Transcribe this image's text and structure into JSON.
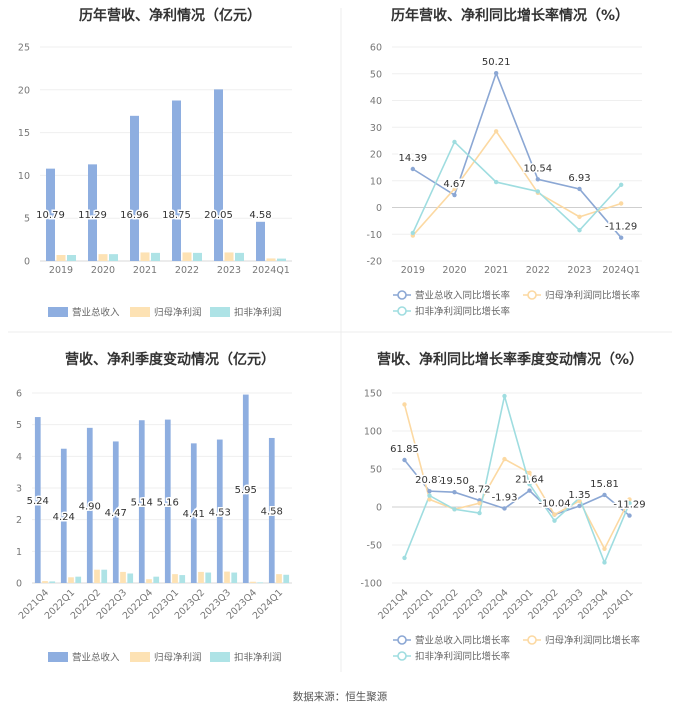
{
  "footer": {
    "source": "数据来源：恒生聚源"
  },
  "colors": {
    "revenue": "#8eaee0",
    "net_profit": "#fde2b4",
    "deducted_profit": "#aee3e6",
    "rev_line": "#8ba7d4",
    "np_line": "#fcd9a2",
    "dp_line": "#9fdde0"
  },
  "chart_data": [
    {
      "type": "bar",
      "title": "历年营收、净利情况（亿元）",
      "categories": [
        "2019",
        "2020",
        "2021",
        "2022",
        "2023",
        "2024Q1"
      ],
      "ylim": [
        0,
        25
      ],
      "yticks": [
        0,
        5,
        10,
        15,
        20,
        25
      ],
      "series": [
        {
          "name": "营业总收入",
          "values": [
            10.79,
            11.29,
            16.96,
            18.75,
            20.05,
            4.58
          ]
        },
        {
          "name": "归母净利润",
          "values": [
            0.7,
            0.8,
            1.0,
            1.0,
            1.0,
            0.3
          ]
        },
        {
          "name": "扣非净利润",
          "values": [
            0.7,
            0.8,
            0.95,
            0.95,
            0.95,
            0.28
          ]
        }
      ],
      "value_labels": [
        "10.79",
        "11.29",
        "16.96",
        "18.75",
        "20.05",
        "4.58"
      ],
      "legend": "bottom"
    },
    {
      "type": "line",
      "title": "历年营收、净利同比增长率情况（%）",
      "categories": [
        "2019",
        "2020",
        "2021",
        "2022",
        "2023",
        "2024Q1"
      ],
      "ylim": [
        -20,
        60
      ],
      "yticks": [
        -20,
        -10,
        0,
        10,
        20,
        30,
        40,
        50,
        60
      ],
      "series": [
        {
          "name": "营业总收入同比增长率",
          "values": [
            14.39,
            4.67,
            50.21,
            10.54,
            6.93,
            -11.29
          ]
        },
        {
          "name": "归母净利润同比增长率",
          "values": [
            -10.5,
            7.0,
            28.5,
            5.5,
            -3.5,
            1.5
          ]
        },
        {
          "name": "扣非净利润同比增长率",
          "values": [
            -9.5,
            24.5,
            9.5,
            6.0,
            -8.5,
            8.5
          ]
        }
      ],
      "value_labels": [
        "14.39",
        "4.67",
        "50.21",
        "10.54",
        "6.93",
        "-11.29"
      ],
      "legend": "bottom"
    },
    {
      "type": "bar",
      "title": "营收、净利季度变动情况（亿元）",
      "categories": [
        "2021Q4",
        "2022Q1",
        "2022Q2",
        "2022Q3",
        "2022Q4",
        "2023Q1",
        "2023Q2",
        "2023Q3",
        "2023Q4",
        "2024Q1"
      ],
      "ylim": [
        0,
        6
      ],
      "yticks": [
        0,
        1,
        2,
        3,
        4,
        5,
        6
      ],
      "series": [
        {
          "name": "营业总收入",
          "values": [
            5.24,
            4.24,
            4.9,
            4.47,
            5.14,
            5.16,
            4.41,
            4.53,
            5.95,
            4.58
          ]
        },
        {
          "name": "归母净利润",
          "values": [
            0.06,
            0.18,
            0.42,
            0.35,
            0.12,
            0.28,
            0.35,
            0.36,
            0.04,
            0.28
          ]
        },
        {
          "name": "扣非净利润",
          "values": [
            0.05,
            0.2,
            0.42,
            0.3,
            0.2,
            0.25,
            0.33,
            0.33,
            0.02,
            0.26
          ]
        }
      ],
      "value_labels": [
        "5.24",
        "4.24",
        "4.90",
        "4.47",
        "5.14",
        "5.16",
        "4.41",
        "4.53",
        "5.95",
        "4.58"
      ],
      "legend": "bottom"
    },
    {
      "type": "line",
      "title": "营收、净利同比增长率季度变动情况（%）",
      "categories": [
        "2021Q4",
        "2022Q1",
        "2022Q2",
        "2022Q3",
        "2022Q4",
        "2023Q1",
        "2023Q2",
        "2023Q3",
        "2023Q4",
        "2024Q1"
      ],
      "ylim": [
        -100,
        150
      ],
      "yticks": [
        -100,
        -50,
        0,
        50,
        100,
        150
      ],
      "series": [
        {
          "name": "营业总收入同比增长率",
          "values": [
            61.85,
            20.87,
            19.5,
            8.72,
            -1.93,
            21.64,
            -10.04,
            1.35,
            15.81,
            -11.29
          ]
        },
        {
          "name": "归母净利润同比增长率",
          "values": [
            135,
            10,
            -3,
            5,
            63,
            45,
            -10,
            8,
            -55,
            10
          ]
        },
        {
          "name": "扣非净利润同比增长率",
          "values": [
            -67,
            15,
            -3,
            -8,
            146,
            30,
            -18,
            12,
            -73,
            5
          ]
        }
      ],
      "value_labels": [
        "61.85",
        "20.87",
        "19.50",
        "8.72",
        "-1.93",
        "21.64",
        "-10.04",
        "1.35",
        "15.81",
        "-11.29"
      ],
      "legend": "bottom"
    }
  ]
}
